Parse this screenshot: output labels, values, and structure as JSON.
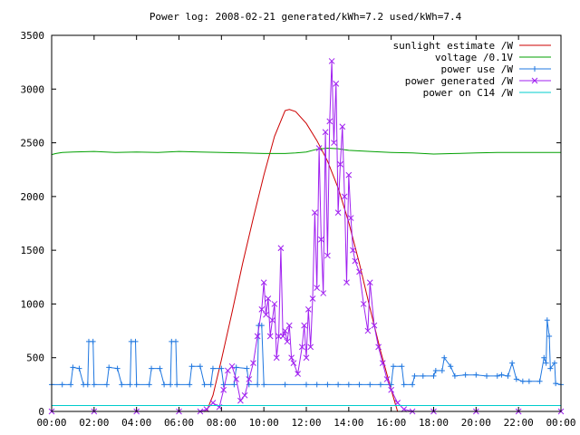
{
  "chart_data": {
    "type": "line",
    "title": "Power log: 2008-02-21 generated/kWh=7.2 used/kWh=7.4",
    "xlabel": "",
    "ylabel": "",
    "xlim": [
      0,
      24
    ],
    "ylim": [
      0,
      3500
    ],
    "x_ticks": [
      "00:00",
      "02:00",
      "04:00",
      "06:00",
      "08:00",
      "10:00",
      "12:00",
      "14:00",
      "16:00",
      "18:00",
      "20:00",
      "22:00",
      "00:00"
    ],
    "y_ticks": [
      "0",
      "500",
      "1000",
      "1500",
      "2000",
      "2500",
      "3000",
      "3500"
    ],
    "grid": false,
    "legend_position": "top-right",
    "series": [
      {
        "name": "sunlight estimate /W",
        "color": "#cc0000",
        "marker": "none",
        "points": [
          [
            7.3,
            0
          ],
          [
            7.6,
            150
          ],
          [
            8.0,
            480
          ],
          [
            8.5,
            920
          ],
          [
            9.0,
            1380
          ],
          [
            9.5,
            1800
          ],
          [
            10.0,
            2200
          ],
          [
            10.5,
            2560
          ],
          [
            11.0,
            2800
          ],
          [
            11.2,
            2810
          ],
          [
            11.5,
            2790
          ],
          [
            12.0,
            2680
          ],
          [
            12.5,
            2520
          ],
          [
            13.0,
            2330
          ],
          [
            13.5,
            2080
          ],
          [
            14.0,
            1760
          ],
          [
            14.5,
            1380
          ],
          [
            15.0,
            960
          ],
          [
            15.5,
            560
          ],
          [
            16.0,
            200
          ],
          [
            16.3,
            0
          ]
        ]
      },
      {
        "name": "voltage /0.1V",
        "color": "#00a000",
        "marker": "none",
        "points": [
          [
            0,
            2390
          ],
          [
            0.2,
            2400
          ],
          [
            0.5,
            2410
          ],
          [
            1,
            2415
          ],
          [
            2,
            2420
          ],
          [
            3,
            2410
          ],
          [
            4,
            2415
          ],
          [
            5,
            2410
          ],
          [
            6,
            2420
          ],
          [
            7,
            2415
          ],
          [
            8,
            2410
          ],
          [
            9,
            2405
          ],
          [
            10,
            2400
          ],
          [
            11,
            2400
          ],
          [
            11.5,
            2405
          ],
          [
            12,
            2415
          ],
          [
            12.5,
            2440
          ],
          [
            13,
            2450
          ],
          [
            13.5,
            2445
          ],
          [
            14,
            2430
          ],
          [
            15,
            2420
          ],
          [
            16,
            2410
          ],
          [
            17,
            2405
          ],
          [
            18,
            2395
          ],
          [
            19,
            2400
          ],
          [
            20,
            2405
          ],
          [
            21,
            2410
          ],
          [
            22,
            2410
          ],
          [
            23,
            2410
          ],
          [
            24,
            2410
          ]
        ]
      },
      {
        "name": "power use /W",
        "color": "#1f77e0",
        "marker": "plus",
        "points": [
          [
            0,
            250
          ],
          [
            0.5,
            250
          ],
          [
            0.9,
            250
          ],
          [
            1.0,
            410
          ],
          [
            1.3,
            400
          ],
          [
            1.5,
            250
          ],
          [
            1.7,
            250
          ],
          [
            1.75,
            650
          ],
          [
            1.95,
            650
          ],
          [
            2.0,
            250
          ],
          [
            2.6,
            250
          ],
          [
            2.7,
            410
          ],
          [
            3.1,
            400
          ],
          [
            3.3,
            250
          ],
          [
            3.7,
            250
          ],
          [
            3.75,
            650
          ],
          [
            3.95,
            650
          ],
          [
            4.0,
            250
          ],
          [
            4.6,
            250
          ],
          [
            4.7,
            400
          ],
          [
            5.1,
            400
          ],
          [
            5.3,
            250
          ],
          [
            5.6,
            250
          ],
          [
            5.65,
            650
          ],
          [
            5.85,
            650
          ],
          [
            5.9,
            250
          ],
          [
            6.5,
            250
          ],
          [
            6.6,
            420
          ],
          [
            7.0,
            420
          ],
          [
            7.2,
            250
          ],
          [
            7.5,
            250
          ],
          [
            7.6,
            400
          ],
          [
            8.0,
            400
          ],
          [
            8.1,
            250
          ],
          [
            8.6,
            250
          ],
          [
            8.7,
            410
          ],
          [
            9.2,
            400
          ],
          [
            9.3,
            250
          ],
          [
            9.7,
            250
          ],
          [
            9.75,
            800
          ],
          [
            9.9,
            800
          ],
          [
            10.0,
            250
          ],
          [
            11,
            250
          ],
          [
            12,
            250
          ],
          [
            12.5,
            250
          ],
          [
            13,
            250
          ],
          [
            13.5,
            250
          ],
          [
            14,
            250
          ],
          [
            14.5,
            250
          ],
          [
            15,
            250
          ],
          [
            15.5,
            250
          ],
          [
            16.0,
            250
          ],
          [
            16.1,
            420
          ],
          [
            16.5,
            420
          ],
          [
            16.6,
            250
          ],
          [
            17.0,
            250
          ],
          [
            17.1,
            330
          ],
          [
            17.5,
            330
          ],
          [
            18.0,
            330
          ],
          [
            18.1,
            380
          ],
          [
            18.4,
            380
          ],
          [
            18.5,
            500
          ],
          [
            18.8,
            420
          ],
          [
            19.0,
            330
          ],
          [
            19.5,
            340
          ],
          [
            20.0,
            340
          ],
          [
            20.5,
            330
          ],
          [
            21.0,
            330
          ],
          [
            21.2,
            340
          ],
          [
            21.5,
            330
          ],
          [
            21.7,
            450
          ],
          [
            21.9,
            300
          ],
          [
            22.2,
            280
          ],
          [
            22.5,
            280
          ],
          [
            23.0,
            280
          ],
          [
            23.2,
            500
          ],
          [
            23.3,
            450
          ],
          [
            23.35,
            850
          ],
          [
            23.45,
            700
          ],
          [
            23.5,
            400
          ],
          [
            23.7,
            450
          ],
          [
            23.75,
            260
          ],
          [
            24.0,
            250
          ]
        ]
      },
      {
        "name": "power generated /W",
        "color": "#a020f0",
        "marker": "x",
        "points": [
          [
            0,
            0
          ],
          [
            2,
            0
          ],
          [
            4,
            0
          ],
          [
            6,
            0
          ],
          [
            7.0,
            0
          ],
          [
            7.3,
            20
          ],
          [
            7.6,
            80
          ],
          [
            7.9,
            40
          ],
          [
            8.1,
            200
          ],
          [
            8.3,
            380
          ],
          [
            8.5,
            420
          ],
          [
            8.7,
            300
          ],
          [
            8.9,
            100
          ],
          [
            9.1,
            150
          ],
          [
            9.3,
            300
          ],
          [
            9.5,
            450
          ],
          [
            9.7,
            700
          ],
          [
            9.9,
            950
          ],
          [
            10.0,
            1200
          ],
          [
            10.1,
            900
          ],
          [
            10.2,
            1050
          ],
          [
            10.3,
            700
          ],
          [
            10.4,
            850
          ],
          [
            10.5,
            1000
          ],
          [
            10.6,
            500
          ],
          [
            10.7,
            700
          ],
          [
            10.8,
            1520
          ],
          [
            10.9,
            700
          ],
          [
            11.0,
            750
          ],
          [
            11.1,
            650
          ],
          [
            11.2,
            800
          ],
          [
            11.3,
            500
          ],
          [
            11.4,
            450
          ],
          [
            11.6,
            350
          ],
          [
            11.8,
            600
          ],
          [
            11.9,
            800
          ],
          [
            12.0,
            500
          ],
          [
            12.1,
            950
          ],
          [
            12.2,
            600
          ],
          [
            12.3,
            1050
          ],
          [
            12.4,
            1850
          ],
          [
            12.5,
            1150
          ],
          [
            12.6,
            2450
          ],
          [
            12.7,
            1600
          ],
          [
            12.8,
            1100
          ],
          [
            12.9,
            2600
          ],
          [
            13.0,
            1450
          ],
          [
            13.1,
            2700
          ],
          [
            13.2,
            3260
          ],
          [
            13.3,
            2500
          ],
          [
            13.4,
            3050
          ],
          [
            13.5,
            1850
          ],
          [
            13.6,
            2300
          ],
          [
            13.7,
            2650
          ],
          [
            13.8,
            2000
          ],
          [
            13.9,
            1200
          ],
          [
            14.0,
            2200
          ],
          [
            14.1,
            1800
          ],
          [
            14.2,
            1500
          ],
          [
            14.3,
            1400
          ],
          [
            14.5,
            1300
          ],
          [
            14.7,
            1000
          ],
          [
            14.9,
            750
          ],
          [
            15.0,
            1200
          ],
          [
            15.2,
            800
          ],
          [
            15.4,
            600
          ],
          [
            15.6,
            450
          ],
          [
            15.8,
            300
          ],
          [
            16.0,
            200
          ],
          [
            16.3,
            80
          ],
          [
            16.6,
            20
          ],
          [
            17.0,
            0
          ],
          [
            18,
            0
          ],
          [
            20,
            0
          ],
          [
            22,
            0
          ],
          [
            24,
            0
          ]
        ]
      },
      {
        "name": "power on C14 /W",
        "color": "#00cccc",
        "marker": "none",
        "points": [
          [
            0,
            55
          ],
          [
            4,
            55
          ],
          [
            8,
            55
          ],
          [
            12,
            55
          ],
          [
            16,
            55
          ],
          [
            20,
            55
          ],
          [
            24,
            55
          ]
        ]
      }
    ]
  }
}
